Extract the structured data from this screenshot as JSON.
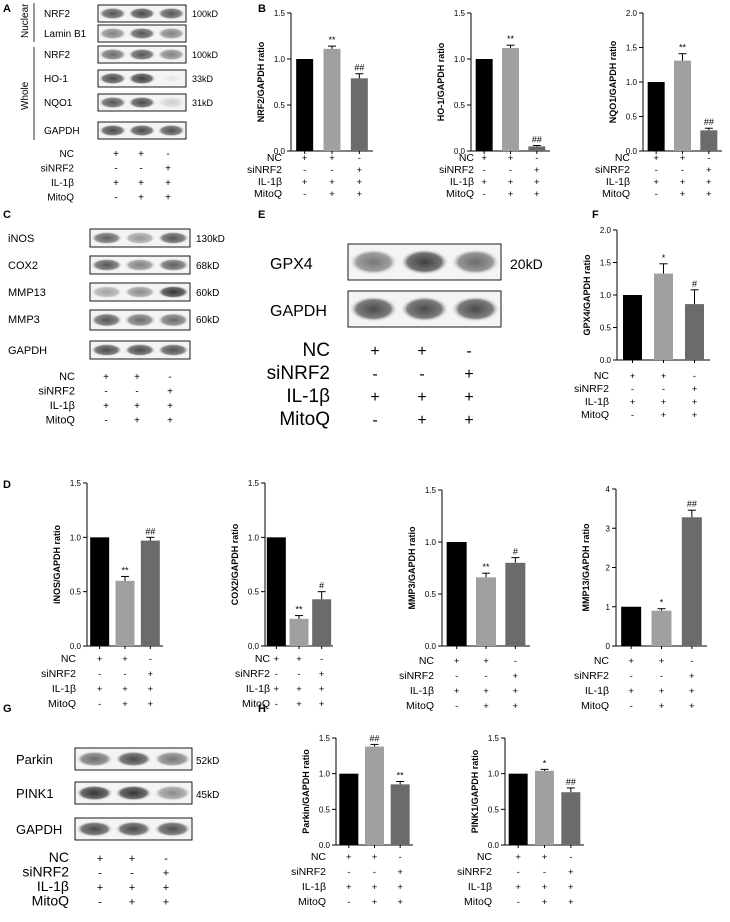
{
  "conditions": {
    "labels": [
      "NC",
      "siNRF2",
      "IL-1β",
      "MitoQ"
    ],
    "rows": [
      [
        "+",
        "+",
        "-"
      ],
      [
        "-",
        "-",
        "+"
      ],
      [
        "+",
        "+",
        "+"
      ],
      [
        "-",
        "+",
        "+"
      ]
    ]
  },
  "panels": {
    "A": {
      "letter": "A",
      "groups": [
        "Nuclear",
        "Whole"
      ],
      "rows": [
        {
          "name": "NRF2",
          "size": "100kD"
        },
        {
          "name": "Lamin B1",
          "size": ""
        },
        {
          "name": "NRF2",
          "size": "100kD"
        },
        {
          "name": "HO-1",
          "size": "33kD"
        },
        {
          "name": "NQO1",
          "size": "31kD"
        },
        {
          "name": "GAPDH",
          "size": ""
        }
      ]
    },
    "B": {
      "letter": "B"
    },
    "C": {
      "letter": "C",
      "rows": [
        {
          "name": "iNOS",
          "size": "130kD"
        },
        {
          "name": "COX2",
          "size": "68kD"
        },
        {
          "name": "MMP13",
          "size": "60kD"
        },
        {
          "name": "MMP3",
          "size": "60kD"
        },
        {
          "name": "GAPDH",
          "size": ""
        }
      ]
    },
    "D": {
      "letter": "D"
    },
    "E": {
      "letter": "E",
      "rows": [
        {
          "name": "GPX4",
          "size": "20kD"
        },
        {
          "name": "GAPDH",
          "size": ""
        }
      ]
    },
    "F": {
      "letter": "F"
    },
    "G": {
      "letter": "G",
      "rows": [
        {
          "name": "Parkin",
          "size": "52kD"
        },
        {
          "name": "PINK1",
          "size": "45kD"
        },
        {
          "name": "GAPDH",
          "size": ""
        }
      ]
    },
    "H": {
      "letter": "H"
    }
  },
  "chart_data": [
    {
      "id": "nrf2",
      "panel": "B",
      "type": "bar",
      "ylabel": "NRF2/GAPDH ratio",
      "ylim": [
        0,
        1.5
      ],
      "yticks": [
        "0.0",
        "0.5",
        "1.0",
        "1.5"
      ],
      "categories": [
        "",
        "",
        ""
      ],
      "values": [
        1.0,
        1.11,
        0.79
      ],
      "errors": [
        0,
        0.03,
        0.05
      ],
      "annotations": [
        "",
        "**",
        "##"
      ],
      "colors": [
        "#000000",
        "#a0a0a0",
        "#6b6b6b"
      ]
    },
    {
      "id": "ho1",
      "panel": "B",
      "type": "bar",
      "ylabel": "HO-1/GAPDH ratio",
      "ylim": [
        0,
        1.5
      ],
      "yticks": [
        "0.0",
        "0.5",
        "1.0",
        "1.5"
      ],
      "categories": [
        "",
        "",
        ""
      ],
      "values": [
        1.0,
        1.12,
        0.05
      ],
      "errors": [
        0,
        0.03,
        0.01
      ],
      "annotations": [
        "",
        "**",
        "##"
      ],
      "colors": [
        "#000000",
        "#a0a0a0",
        "#6b6b6b"
      ]
    },
    {
      "id": "nqo1",
      "panel": "B",
      "type": "bar",
      "ylabel": "NQO1/GAPDH ratio",
      "ylim": [
        0,
        2.0
      ],
      "yticks": [
        "0.0",
        "0.5",
        "1.0",
        "1.5",
        "2.0"
      ],
      "categories": [
        "",
        "",
        ""
      ],
      "values": [
        1.0,
        1.31,
        0.3
      ],
      "errors": [
        0,
        0.1,
        0.03
      ],
      "annotations": [
        "",
        "**",
        "##"
      ],
      "colors": [
        "#000000",
        "#a0a0a0",
        "#6b6b6b"
      ]
    },
    {
      "id": "gpx4",
      "panel": "F",
      "type": "bar",
      "ylabel": "GPX4/GAPDH ratio",
      "ylim": [
        0,
        2.0
      ],
      "yticks": [
        "0.0",
        "0.5",
        "1.0",
        "1.5",
        "2.0"
      ],
      "categories": [
        "",
        "",
        ""
      ],
      "values": [
        1.0,
        1.33,
        0.86
      ],
      "errors": [
        0,
        0.15,
        0.22
      ],
      "annotations": [
        "",
        "*",
        "#"
      ],
      "colors": [
        "#000000",
        "#a0a0a0",
        "#6b6b6b"
      ]
    },
    {
      "id": "inos",
      "panel": "D",
      "type": "bar",
      "ylabel": "iNOS/GAPDH ratio",
      "ylim": [
        0,
        1.5
      ],
      "yticks": [
        "0.0",
        "0.5",
        "1.0",
        "1.5"
      ],
      "categories": [
        "",
        "",
        ""
      ],
      "values": [
        1.0,
        0.6,
        0.97
      ],
      "errors": [
        0,
        0.04,
        0.03
      ],
      "annotations": [
        "",
        "**",
        "##"
      ],
      "colors": [
        "#000000",
        "#a0a0a0",
        "#6b6b6b"
      ]
    },
    {
      "id": "cox2",
      "panel": "D",
      "type": "bar",
      "ylabel": "COX2/GAPDH ratio",
      "ylim": [
        0,
        1.5
      ],
      "yticks": [
        "0.0",
        "0.5",
        "1.0",
        "1.5"
      ],
      "categories": [
        "",
        "",
        ""
      ],
      "values": [
        1.0,
        0.25,
        0.43
      ],
      "errors": [
        0,
        0.03,
        0.07
      ],
      "annotations": [
        "",
        "**",
        "#"
      ],
      "colors": [
        "#000000",
        "#a0a0a0",
        "#6b6b6b"
      ]
    },
    {
      "id": "mmp3",
      "panel": "D",
      "type": "bar",
      "ylabel": "MMP3/GAPDH ratio",
      "ylim": [
        0,
        1.5
      ],
      "yticks": [
        "0.0",
        "0.5",
        "1.0",
        "1.5"
      ],
      "categories": [
        "",
        "",
        ""
      ],
      "values": [
        1.0,
        0.66,
        0.8
      ],
      "errors": [
        0,
        0.04,
        0.05
      ],
      "annotations": [
        "",
        "**",
        "#"
      ],
      "colors": [
        "#000000",
        "#a0a0a0",
        "#6b6b6b"
      ]
    },
    {
      "id": "mmp13",
      "panel": "D",
      "type": "bar",
      "ylabel": "MMP13/GAPDH ratio",
      "ylim": [
        0,
        4
      ],
      "yticks": [
        "0",
        "1",
        "2",
        "3",
        "4"
      ],
      "categories": [
        "",
        "",
        ""
      ],
      "values": [
        1.0,
        0.9,
        3.28
      ],
      "errors": [
        0,
        0.05,
        0.18
      ],
      "annotations": [
        "",
        "*",
        "##"
      ],
      "colors": [
        "#000000",
        "#a0a0a0",
        "#6b6b6b"
      ]
    },
    {
      "id": "parkin",
      "panel": "H",
      "type": "bar",
      "ylabel": "Parkin/GAPDH ratio",
      "ylim": [
        0,
        1.5
      ],
      "yticks": [
        "0.0",
        "0.5",
        "1.0",
        "1.5"
      ],
      "categories": [
        "",
        "",
        ""
      ],
      "values": [
        1.0,
        1.38,
        0.85
      ],
      "errors": [
        0,
        0.03,
        0.04
      ],
      "annotations": [
        "",
        "##",
        "**"
      ],
      "colors": [
        "#000000",
        "#a0a0a0",
        "#6b6b6b"
      ]
    },
    {
      "id": "pink1",
      "panel": "H",
      "type": "bar",
      "ylabel": "PINK1/GAPDH ratio",
      "ylim": [
        0,
        1.5
      ],
      "yticks": [
        "0.0",
        "0.5",
        "1.0",
        "1.5"
      ],
      "categories": [
        "",
        "",
        ""
      ],
      "values": [
        1.0,
        1.04,
        0.74
      ],
      "errors": [
        0,
        0.02,
        0.06
      ],
      "annotations": [
        "",
        "*",
        "##"
      ],
      "colors": [
        "#000000",
        "#a0a0a0",
        "#6b6b6b"
      ]
    }
  ]
}
